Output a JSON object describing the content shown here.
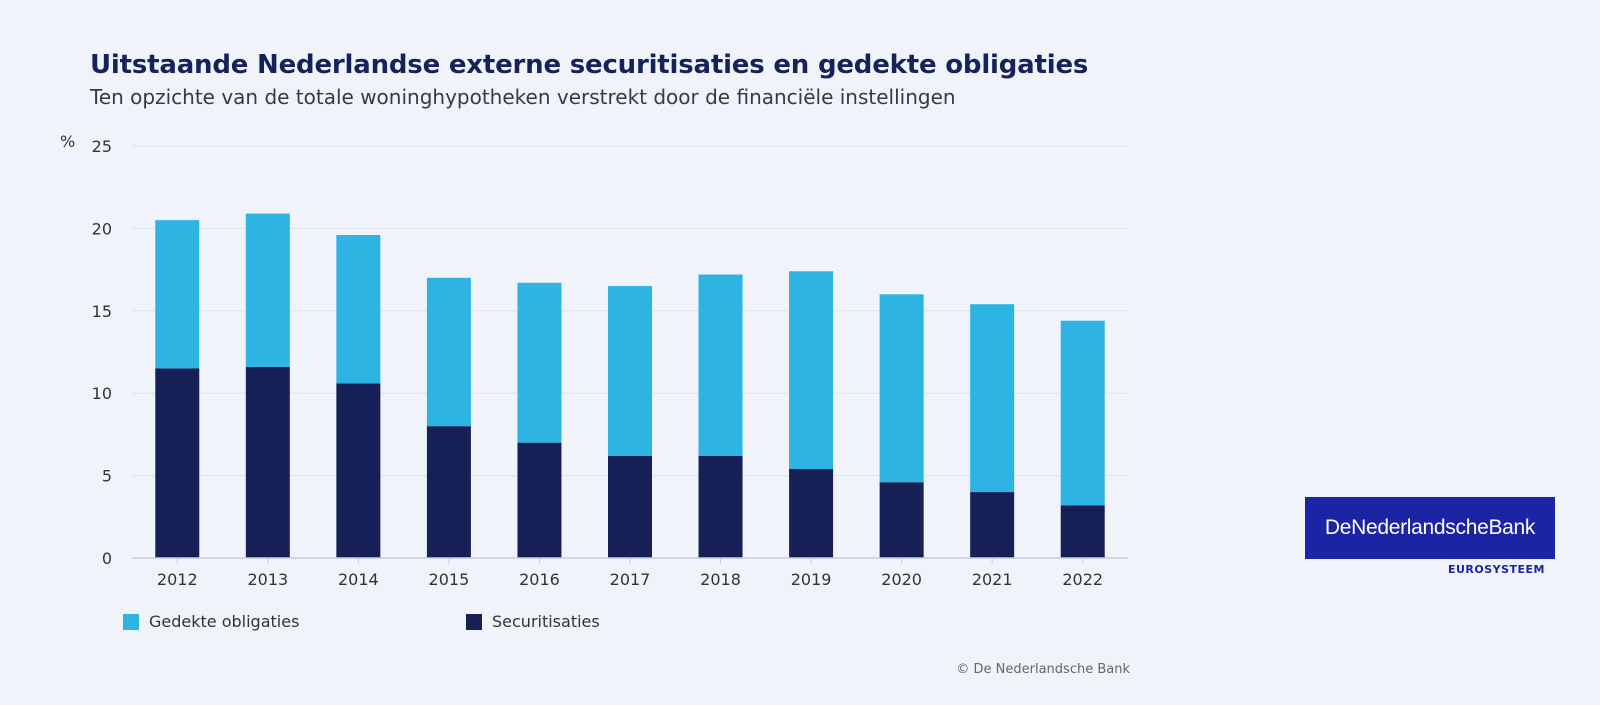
{
  "header": {
    "title": "Uitstaande Nederlandse externe securitisaties en gedekte obligaties",
    "subtitle": "Ten opzichte van de totale woninghypotheken verstrekt door de financiële instellingen"
  },
  "chart_data": {
    "type": "bar",
    "stacked": true,
    "ylabel": "%",
    "ylim": [
      0,
      25
    ],
    "yticks": [
      0,
      5,
      10,
      15,
      20,
      25
    ],
    "grid": true,
    "categories": [
      "2012",
      "2013",
      "2014",
      "2015",
      "2016",
      "2017",
      "2018",
      "2019",
      "2020",
      "2021",
      "2022"
    ],
    "series": [
      {
        "name": "Securitisaties",
        "color": "#162056",
        "values": [
          11.5,
          11.6,
          10.6,
          8.0,
          7.0,
          6.2,
          6.2,
          5.4,
          4.6,
          4.0,
          3.2
        ]
      },
      {
        "name": "Gedekte obligaties",
        "color": "#2eb4e3",
        "values": [
          9.0,
          9.3,
          9.0,
          9.0,
          9.7,
          10.3,
          11.0,
          12.0,
          11.4,
          11.4,
          11.2
        ]
      }
    ],
    "legend_position": "bottom-left"
  },
  "legend": {
    "items": [
      {
        "label": "Gedekte obligaties",
        "color": "#2eb4e3"
      },
      {
        "label": "Securitisaties",
        "color": "#162056"
      }
    ]
  },
  "footer": {
    "copyright": "© De Nederlandsche Bank"
  },
  "logo": {
    "name": "DeNederlandscheBank",
    "sub": "EUROSYSTEEM",
    "color": "#1b24a5"
  }
}
